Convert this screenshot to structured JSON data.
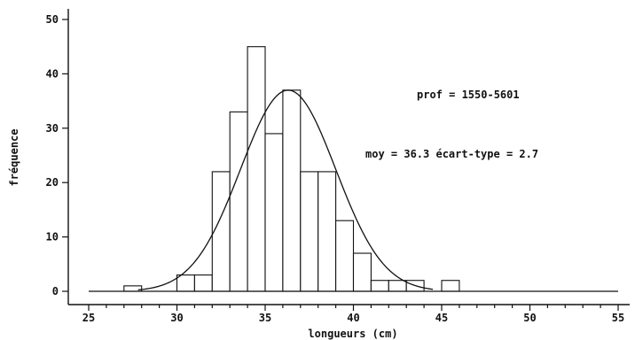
{
  "chart_data": {
    "type": "bar",
    "subtype": "histogram-with-normal-fit",
    "xlabel": "longueurs (cm)",
    "ylabel": "fréquence",
    "annotation_depth": "prof = 1550-5601",
    "annotation_stats": "moy = 36.3 écart-type = 2.7",
    "xlim": [
      25,
      55
    ],
    "ylim": [
      0,
      50
    ],
    "x_ticks": [
      "25",
      "30",
      "35",
      "40",
      "45",
      "50",
      "55"
    ],
    "y_ticks": [
      "0",
      "10",
      "20",
      "30",
      "40",
      "50"
    ],
    "grid": false,
    "bin_width": 1,
    "bins": [
      {
        "x": 27.5,
        "value": 1
      },
      {
        "x": 30.5,
        "value": 3
      },
      {
        "x": 31.5,
        "value": 3
      },
      {
        "x": 32.5,
        "value": 22
      },
      {
        "x": 33.5,
        "value": 33
      },
      {
        "x": 34.5,
        "value": 45
      },
      {
        "x": 35.5,
        "value": 29
      },
      {
        "x": 36.5,
        "value": 37
      },
      {
        "x": 37.5,
        "value": 22
      },
      {
        "x": 38.5,
        "value": 22
      },
      {
        "x": 39.5,
        "value": 13
      },
      {
        "x": 40.5,
        "value": 7
      },
      {
        "x": 41.5,
        "value": 2
      },
      {
        "x": 42.5,
        "value": 2
      },
      {
        "x": 43.5,
        "value": 2
      },
      {
        "x": 45.5,
        "value": 2
      }
    ],
    "fit": {
      "mean": 36.3,
      "sd": 2.7,
      "peak": 37
    }
  }
}
